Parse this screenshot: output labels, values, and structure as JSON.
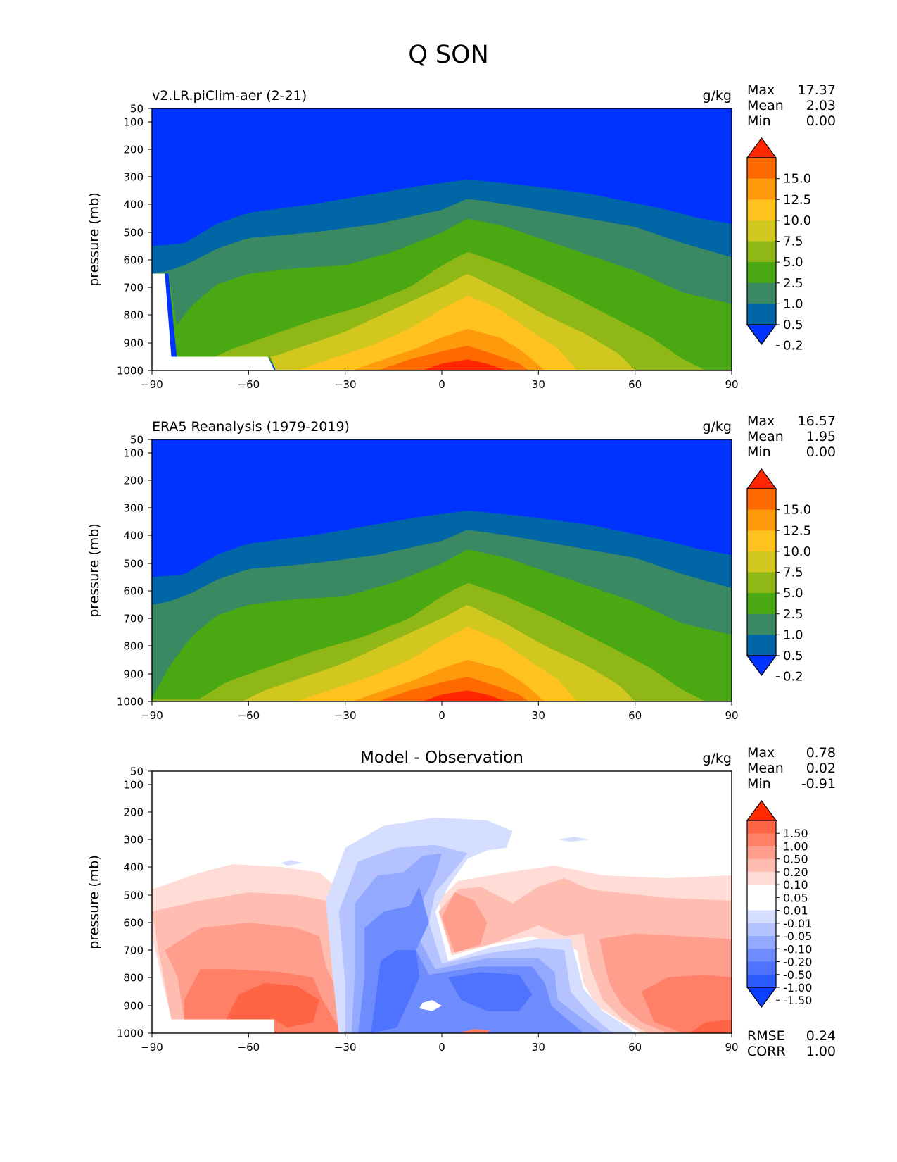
{
  "figure_title": "Q SON",
  "colors": {
    "abs_levels": [
      "#0033ff",
      "#0066a6",
      "#3a8962",
      "#4aa812",
      "#8fb817",
      "#d1c71f",
      "#ffc21f",
      "#ff9a0d",
      "#ff6a00",
      "#ff2600"
    ],
    "diff_levels": [
      "#0a40ff",
      "#2a5cff",
      "#4f73ff",
      "#6f8cff",
      "#93a8ff",
      "#b4c2ff",
      "#d6deff",
      "#ffffff",
      "#ffffff",
      "#ffdcd6",
      "#ffbdb1",
      "#ff9e8c",
      "#ff8066",
      "#ff6445",
      "#ff2a00"
    ]
  },
  "chart_data": [
    {
      "type": "heatmap",
      "name": "model",
      "title_left": "v2.LR.piClim-aer (2-21)",
      "title_center": "",
      "units": "g/kg",
      "ylabel": "pressure (mb)",
      "xlim": [
        -90,
        90
      ],
      "ylim": [
        1000,
        50
      ],
      "x_ticks": [
        "−90",
        "−60",
        "−30",
        "0",
        "30",
        "60",
        "90"
      ],
      "y_ticks": [
        "50",
        "100",
        "200",
        "300",
        "400",
        "500",
        "600",
        "700",
        "800",
        "900",
        "1000"
      ],
      "stats": [
        {
          "label": "Max",
          "value": "17.37"
        },
        {
          "label": "Mean",
          "value": "2.03"
        },
        {
          "label": "Min",
          "value": "0.00"
        }
      ],
      "colorbar_labels": [
        "15.0",
        "12.5",
        "10.0",
        "7.5",
        "5.0",
        "2.5",
        "1.0",
        "0.5",
        "0.2"
      ],
      "footer_stats": []
    },
    {
      "type": "heatmap",
      "name": "obs",
      "title_left": "ERA5 Reanalysis (1979-2019)",
      "title_center": "",
      "units": "g/kg",
      "ylabel": "pressure (mb)",
      "xlim": [
        -90,
        90
      ],
      "ylim": [
        1000,
        50
      ],
      "x_ticks": [
        "−90",
        "−60",
        "−30",
        "0",
        "30",
        "60",
        "90"
      ],
      "y_ticks": [
        "50",
        "100",
        "200",
        "300",
        "400",
        "500",
        "600",
        "700",
        "800",
        "900",
        "1000"
      ],
      "stats": [
        {
          "label": "Max",
          "value": "16.57"
        },
        {
          "label": "Mean",
          "value": "1.95"
        },
        {
          "label": "Min",
          "value": "0.00"
        }
      ],
      "colorbar_labels": [
        "15.0",
        "12.5",
        "10.0",
        "7.5",
        "5.0",
        "2.5",
        "1.0",
        "0.5",
        "0.2"
      ],
      "footer_stats": []
    },
    {
      "type": "heatmap",
      "name": "diff",
      "title_left": "",
      "title_center": "Model - Observation",
      "units": "g/kg",
      "ylabel": "pressure (mb)",
      "xlim": [
        -90,
        90
      ],
      "ylim": [
        1000,
        50
      ],
      "x_ticks": [
        "−90",
        "−60",
        "−30",
        "0",
        "30",
        "60",
        "90"
      ],
      "y_ticks": [
        "50",
        "100",
        "200",
        "300",
        "400",
        "500",
        "600",
        "700",
        "800",
        "900",
        "1000"
      ],
      "stats": [
        {
          "label": "Max",
          "value": "0.78"
        },
        {
          "label": "Mean",
          "value": "0.02"
        },
        {
          "label": "Min",
          "value": "-0.91"
        }
      ],
      "colorbar_labels": [
        "1.50",
        "1.00",
        "0.50",
        "0.20",
        "0.10",
        "0.05",
        "0.01",
        "-0.01",
        "-0.05",
        "-0.10",
        "-0.20",
        "-0.50",
        "-1.00",
        "-1.50"
      ],
      "footer_stats": [
        {
          "label": "RMSE",
          "value": "0.24"
        },
        {
          "label": "CORR",
          "value": "1.00"
        }
      ]
    }
  ]
}
